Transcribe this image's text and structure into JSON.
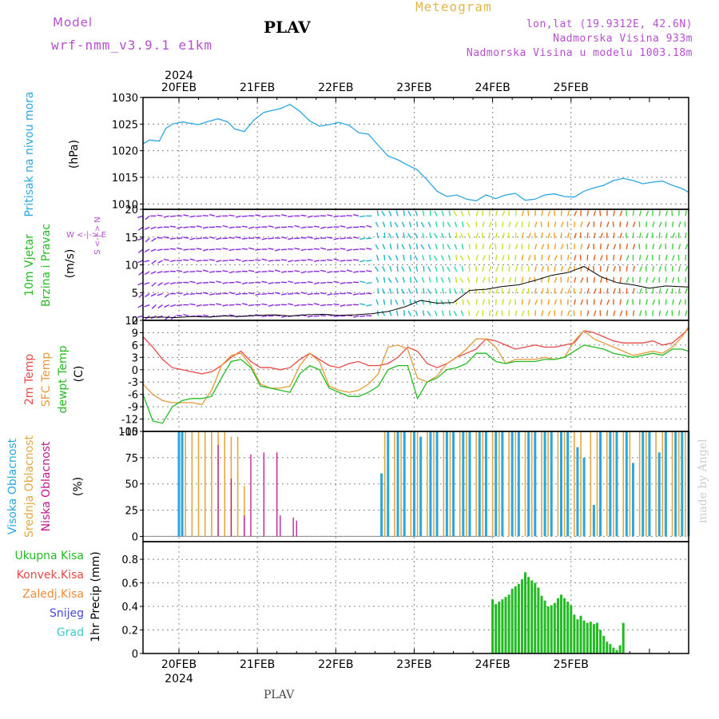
{
  "header": {
    "model_label": "Model",
    "model_name": "wrf-nmm_v3.9.1  e1km",
    "title": "PLAV",
    "meteogram_label": "Meteogram",
    "lonlat": "lon,lat (19.9312E, 42.6N)",
    "elevation": "Nadmorska Visina 933m",
    "model_elevation": "Nadmorska Visina u modelu 1003.18m",
    "footer": "PLAV",
    "watermark": "made by Angel"
  },
  "colors": {
    "pressure": "#2aa7e0",
    "wind_label": "#22bb22",
    "temp2m": "#e84848",
    "sfc": "#e59a3a",
    "dewpt": "#22bb22",
    "high_cloud": "#2aa7e0",
    "mid_cloud": "#e5a840",
    "low_cloud": "#c0158c",
    "total_precip": "#22bb22",
    "conv_precip": "#e84848",
    "grid_precip": "#f08b3a",
    "snow": "#4747e8",
    "graupel": "#3ccccc",
    "compass": "#b64fcf"
  },
  "chart_data": {
    "type": "line",
    "x_axis": {
      "year_label": "2024",
      "date_labels": [
        "20FEB",
        "21FEB",
        "22FEB",
        "23FEB",
        "24FEB",
        "25FEB"
      ],
      "x_range_hours": [
        -11,
        156
      ]
    },
    "panels": [
      {
        "id": "pressure",
        "ylabel_rot": "Pritisak na nivou mora",
        "unit": "(hPa)",
        "ylim": [
          1009,
          1030
        ],
        "ticks": [
          "1010",
          "1015",
          "1020",
          "1025",
          "1030"
        ],
        "tick_values": [
          1010,
          1015,
          1020,
          1025,
          1030
        ],
        "series": [
          {
            "name": "Pritisak na nivou mora",
            "x": [
              -11,
              -9,
              -6,
              -4,
              -2,
              1,
              3,
              6,
              9,
              12,
              15,
              17,
              20,
              23,
              26,
              28,
              31,
              34,
              37,
              40,
              43,
              46,
              49,
              52,
              55,
              58,
              61,
              64,
              67,
              70,
              73,
              76,
              79,
              82,
              85,
              88,
              91,
              94,
              97,
              100,
              103,
              106,
              109,
              112,
              115,
              118,
              121,
              124,
              127,
              130,
              133,
              136,
              139,
              142,
              145,
              148,
              151,
              154,
              156
            ],
            "values": [
              1021.3,
              1022.0,
              1021.8,
              1024.2,
              1025.0,
              1025.4,
              1025.2,
              1024.9,
              1025.5,
              1026.0,
              1025.4,
              1024.1,
              1023.6,
              1025.8,
              1027.2,
              1027.5,
              1027.9,
              1028.7,
              1027.4,
              1025.6,
              1024.6,
              1024.9,
              1025.3,
              1024.8,
              1023.4,
              1023.1,
              1021.0,
              1019.0,
              1018.3,
              1017.3,
              1016.4,
              1014.5,
              1012.4,
              1011.4,
              1011.7,
              1010.9,
              1010.6,
              1011.7,
              1011.0,
              1011.7,
              1012.0,
              1010.7,
              1010.9,
              1011.7,
              1011.9,
              1011.4,
              1011.3,
              1012.4,
              1013.0,
              1013.5,
              1014.4,
              1014.8,
              1014.4,
              1013.8,
              1014.1,
              1014.3,
              1013.5,
              1012.9,
              1012.2
            ]
          }
        ]
      },
      {
        "id": "wind",
        "ylabel_rot_1": "10m Vjetar",
        "ylabel_rot_2": "Brzina i Pravac",
        "unit": "(m/s)",
        "compass": "W <-|-> E",
        "compass_ns": "S <-|-> N",
        "ylim": [
          0,
          20
        ],
        "ticks": [
          "0",
          "5",
          "10",
          "15",
          "20"
        ],
        "tick_values": [
          0,
          5,
          10,
          15,
          20
        ],
        "series": [
          {
            "name": "10m Vjetar",
            "x": [
              -11,
              -6,
              -1,
              4,
              9,
              14,
              19,
              24,
              29,
              34,
              39,
              44,
              49,
              54,
              59,
              64,
              69,
              74,
              79,
              84,
              89,
              94,
              99,
              104,
              109,
              114,
              119,
              124,
              129,
              134,
              139,
              144,
              149,
              156
            ],
            "values": [
              0.5,
              0.6,
              0.5,
              0.7,
              0.6,
              0.8,
              0.7,
              0.9,
              1.0,
              0.8,
              1.0,
              1.1,
              0.9,
              1.0,
              1.2,
              1.6,
              2.4,
              3.6,
              3.1,
              3.2,
              5.4,
              5.6,
              6.1,
              6.4,
              7.2,
              8.1,
              8.6,
              9.7,
              7.9,
              6.8,
              6.4,
              5.8,
              6.2,
              6.0
            ]
          }
        ]
      },
      {
        "id": "temperature",
        "ylabel_rot_1": "2m Temp",
        "ylabel_rot_2": "SFC Temp",
        "ylabel_rot_3": "dewpt Temp",
        "unit": "(C)",
        "ylim": [
          -15,
          12
        ],
        "ticks": [
          "-15",
          "-12",
          "-9",
          "-6",
          "-3",
          "0",
          "3",
          "6",
          "9",
          "12"
        ],
        "tick_values": [
          -15,
          -12,
          -9,
          -6,
          -3,
          0,
          3,
          6,
          9,
          12
        ],
        "series": [
          {
            "name": "2m Temp",
            "x": [
              -11,
              -8,
              -5,
              -2,
              1,
              4,
              7,
              10,
              13,
              16,
              19,
              22,
              25,
              28,
              31,
              34,
              37,
              40,
              43,
              46,
              49,
              52,
              55,
              58,
              61,
              64,
              67,
              70,
              73,
              76,
              79,
              82,
              85,
              88,
              91,
              94,
              97,
              100,
              103,
              106,
              109,
              112,
              115,
              118,
              121,
              124,
              127,
              130,
              133,
              136,
              139,
              142,
              145,
              148,
              151,
              154,
              156
            ],
            "values": [
              8.0,
              5.5,
              2.5,
              0.5,
              0.0,
              -0.5,
              -1.0,
              -0.5,
              1.0,
              3.0,
              4.5,
              2.0,
              0.5,
              0.5,
              0.0,
              0.5,
              2.5,
              4.0,
              2.5,
              1.0,
              0.5,
              1.5,
              2.0,
              1.0,
              1.0,
              1.5,
              3.0,
              5.5,
              4.5,
              1.5,
              0.5,
              1.5,
              3.0,
              4.0,
              5.0,
              7.5,
              7.0,
              6.0,
              5.0,
              5.5,
              6.0,
              5.5,
              5.5,
              6.0,
              6.5,
              9.5,
              9.0,
              8.0,
              7.0,
              6.5,
              6.5,
              6.5,
              7.0,
              6.0,
              6.5,
              8.5,
              10.0
            ]
          },
          {
            "name": "SFC Temp",
            "x": [
              -11,
              -8,
              -5,
              -2,
              1,
              4,
              7,
              10,
              13,
              16,
              19,
              22,
              25,
              28,
              31,
              34,
              37,
              40,
              43,
              46,
              49,
              52,
              55,
              58,
              61,
              64,
              67,
              70,
              73,
              76,
              79,
              82,
              85,
              88,
              91,
              94,
              97,
              100,
              103,
              106,
              109,
              112,
              115,
              118,
              121,
              124,
              127,
              130,
              133,
              136,
              139,
              142,
              145,
              148,
              151,
              154,
              156
            ],
            "values": [
              -3.5,
              -6.0,
              -7.5,
              -8.0,
              -8.0,
              -8.0,
              -8.5,
              -5.0,
              1.0,
              3.5,
              4.0,
              1.0,
              -3.5,
              -4.5,
              -4.5,
              -4.0,
              1.0,
              4.0,
              2.0,
              -4.0,
              -5.0,
              -5.5,
              -5.0,
              -3.5,
              -1.0,
              5.5,
              6.0,
              5.0,
              -2.0,
              -3.0,
              -1.5,
              1.5,
              3.0,
              5.0,
              7.5,
              7.5,
              5.5,
              1.5,
              2.5,
              2.5,
              2.5,
              3.0,
              2.5,
              3.0,
              7.0,
              9.5,
              7.5,
              6.5,
              5.5,
              4.5,
              3.5,
              4.0,
              4.5,
              4.0,
              5.5,
              8.0,
              10.5
            ]
          },
          {
            "name": "dewpt Temp",
            "x": [
              -11,
              -8,
              -5,
              -2,
              1,
              4,
              7,
              10,
              13,
              16,
              19,
              22,
              25,
              28,
              31,
              34,
              37,
              40,
              43,
              46,
              49,
              52,
              55,
              58,
              61,
              64,
              67,
              70,
              73,
              76,
              79,
              82,
              85,
              88,
              91,
              94,
              97,
              100,
              103,
              106,
              109,
              112,
              115,
              118,
              121,
              124,
              127,
              130,
              133,
              136,
              139,
              142,
              145,
              148,
              151,
              154,
              156
            ],
            "values": [
              -6.0,
              -12.5,
              -13.0,
              -9.0,
              -7.5,
              -7.0,
              -7.0,
              -6.5,
              -2.0,
              2.0,
              2.5,
              0.5,
              -4.0,
              -4.5,
              -5.0,
              -5.5,
              -1.0,
              1.0,
              0.0,
              -4.5,
              -5.5,
              -6.5,
              -6.5,
              -5.5,
              -4.0,
              0.0,
              1.0,
              1.0,
              -7.0,
              -3.0,
              -2.0,
              0.0,
              0.5,
              1.5,
              4.0,
              4.0,
              2.0,
              1.5,
              2.0,
              2.0,
              2.0,
              2.5,
              2.5,
              3.0,
              4.5,
              6.0,
              5.5,
              5.0,
              4.0,
              3.5,
              3.0,
              3.5,
              4.0,
              3.5,
              5.0,
              5.0,
              4.5
            ]
          }
        ]
      },
      {
        "id": "cloud",
        "ylabel_rot_1": "Visoka Oblacnost",
        "ylabel_rot_2": "Srednja Oblacnost",
        "ylabel_rot_3": "Niska Oblacnost",
        "unit": "(%)",
        "ylim": [
          -5,
          100
        ],
        "ticks": [
          "0",
          "25",
          "50",
          "75",
          "100"
        ],
        "tick_values": [
          0,
          25,
          50,
          75,
          100
        ],
        "high_x": [
          0,
          1,
          62,
          64,
          67,
          69,
          72,
          74,
          77,
          79,
          82,
          84,
          87,
          89,
          92,
          94,
          97,
          99,
          102,
          104,
          107,
          109,
          112,
          114,
          117,
          119,
          122,
          124,
          127,
          129,
          132,
          134,
          137,
          139,
          142,
          144,
          147,
          149,
          152,
          154,
          156
        ],
        "high_values": [
          100,
          100,
          60,
          100,
          100,
          100,
          100,
          95,
          100,
          100,
          100,
          100,
          100,
          100,
          100,
          100,
          100,
          100,
          100,
          100,
          100,
          100,
          100,
          100,
          100,
          100,
          85,
          75,
          30,
          100,
          100,
          100,
          100,
          70,
          100,
          100,
          80,
          100,
          100,
          100,
          100
        ],
        "mid_x": [
          2,
          4,
          6,
          8,
          10,
          12,
          14,
          16,
          18,
          20,
          63,
          66,
          68,
          71,
          73,
          76,
          78,
          81,
          83,
          86,
          88,
          91,
          93,
          96,
          98,
          101,
          103,
          106,
          108,
          111,
          113,
          116,
          118,
          121,
          123,
          126,
          128,
          131,
          133,
          136,
          138,
          141,
          143,
          146,
          148,
          151,
          153,
          155
        ],
        "mid_values": [
          100,
          100,
          100,
          100,
          100,
          100,
          100,
          95,
          95,
          48,
          100,
          100,
          100,
          100,
          100,
          100,
          100,
          100,
          100,
          100,
          100,
          100,
          100,
          100,
          100,
          100,
          100,
          100,
          100,
          100,
          100,
          100,
          100,
          100,
          100,
          100,
          100,
          100,
          100,
          100,
          100,
          100,
          100,
          100,
          100,
          100,
          100,
          100
        ],
        "low_x": [
          12,
          16,
          20,
          22,
          26,
          30,
          31,
          35,
          36
        ],
        "low_values": [
          87,
          55,
          20,
          78,
          80,
          80,
          20,
          18,
          15
        ]
      },
      {
        "id": "precip",
        "ylabel_rot": "1hr Precip (mm)",
        "legend": [
          "Ukupna  Kisa",
          "Konvek.Kisa",
          "Zaledj.Kisa",
          "Snijeg",
          "Grad"
        ],
        "ylim": [
          0,
          0.95
        ],
        "ticks": [
          "0",
          "0.2",
          "0.4",
          "0.6",
          "0.8"
        ],
        "tick_values": [
          0,
          0.2,
          0.4,
          0.6,
          0.8
        ],
        "series": [
          {
            "name": "Ukupna  Kisa",
            "x": [
              96,
              97,
              98,
              99,
              100,
              101,
              102,
              103,
              104,
              105,
              106,
              107,
              108,
              109,
              110,
              111,
              112,
              113,
              114,
              115,
              116,
              117,
              118,
              119,
              120,
              121,
              122,
              123,
              124,
              125,
              126,
              127,
              128,
              129,
              130,
              131,
              132,
              133,
              134,
              135,
              136,
              137,
              138,
              139,
              140,
              141,
              142,
              143,
              144,
              145,
              146,
              147,
              148,
              149,
              150,
              151,
              152,
              153,
              154,
              155,
              156
            ],
            "values": [
              0.46,
              0.42,
              0.44,
              0.46,
              0.48,
              0.5,
              0.55,
              0.57,
              0.59,
              0.63,
              0.69,
              0.65,
              0.62,
              0.6,
              0.56,
              0.49,
              0.45,
              0.4,
              0.41,
              0.43,
              0.47,
              0.5,
              0.47,
              0.44,
              0.41,
              0.33,
              0.29,
              0.32,
              0.28,
              0.26,
              0.27,
              0.25,
              0.26,
              0.2,
              0.15,
              0.1,
              0.08,
              0.05,
              0.03,
              0.07,
              0.26,
              0.0,
              0.0,
              0.0,
              0.0,
              0.0,
              0.0,
              0.0,
              0.0,
              0.0,
              0.0,
              0.0,
              0.0,
              0.0,
              0.0,
              0.0,
              0.0,
              0.0,
              0.0,
              0.0,
              0.0
            ]
          }
        ]
      }
    ]
  }
}
